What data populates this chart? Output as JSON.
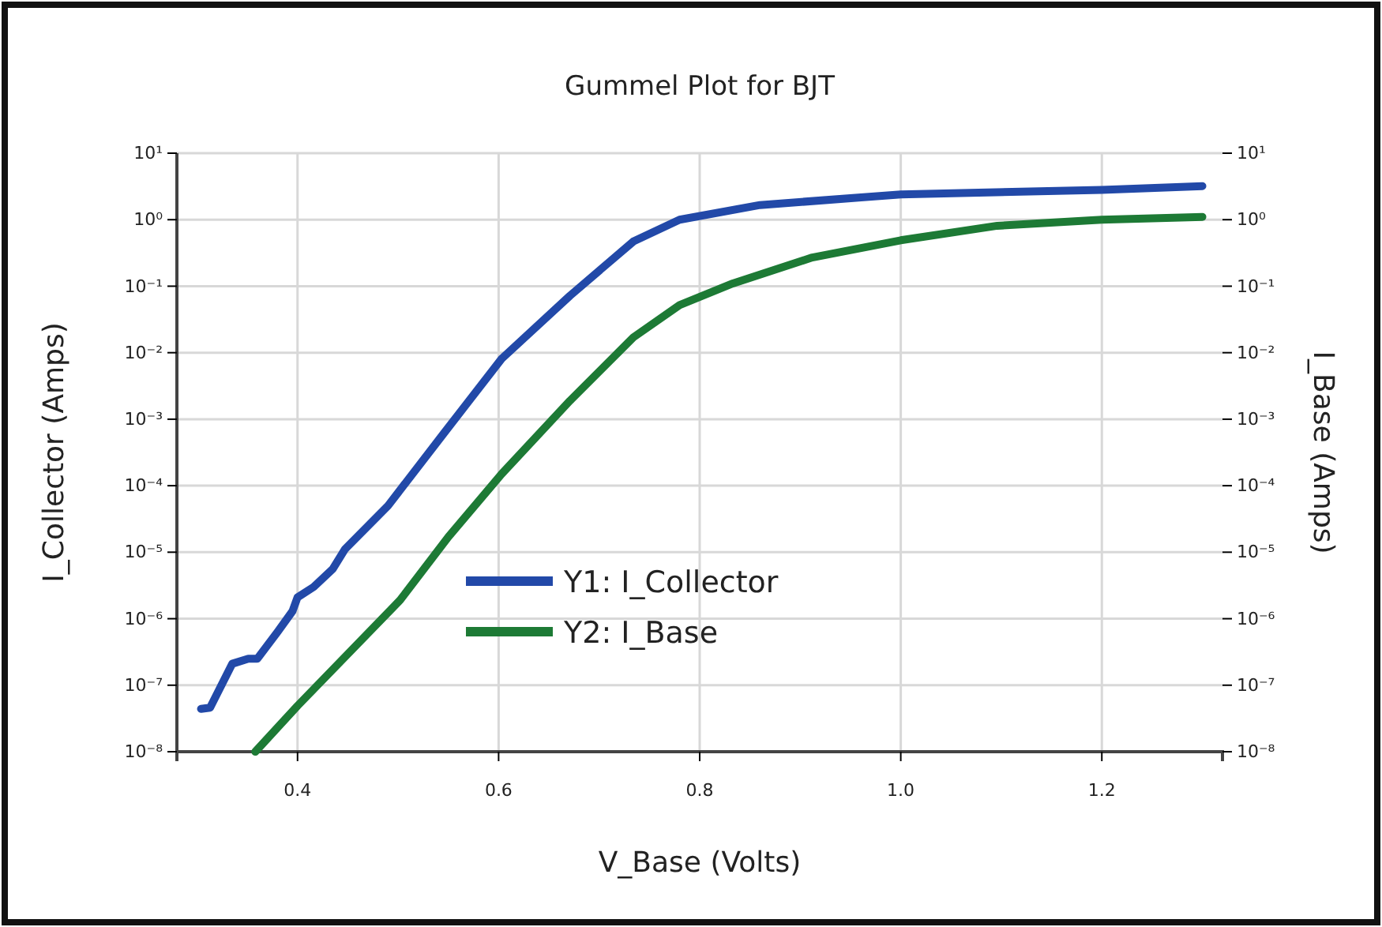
{
  "chart_data": {
    "type": "line",
    "title": "Gummel Plot for BJT",
    "xlabel": "V_Base (Volts)",
    "ylabel": "I_Collector (Amps)",
    "y2label": "I_Base (Amps)",
    "xlim": [
      0.28,
      1.32
    ],
    "xticks": [
      {
        "value": 0.4,
        "label": "0.4"
      },
      {
        "value": 0.6,
        "label": "0.6"
      },
      {
        "value": 0.8,
        "label": "0.8"
      },
      {
        "value": 1.0,
        "label": "1.0"
      },
      {
        "value": 1.2,
        "label": "1.2"
      }
    ],
    "ylim": [
      1e-08,
      10
    ],
    "yticks": [
      {
        "value": 1e-08,
        "label": "10⁻⁸"
      },
      {
        "value": 1e-07,
        "label": "10⁻⁷"
      },
      {
        "value": 1e-06,
        "label": "10⁻⁶"
      },
      {
        "value": 1e-05,
        "label": "10⁻⁵"
      },
      {
        "value": 0.0001,
        "label": "10⁻⁴"
      },
      {
        "value": 0.001,
        "label": "10⁻³"
      },
      {
        "value": 0.01,
        "label": "10⁻²"
      },
      {
        "value": 0.1,
        "label": "10⁻¹"
      },
      {
        "value": 1,
        "label": "10⁰"
      },
      {
        "value": 10,
        "label": "10¹"
      }
    ],
    "log": true,
    "grid": true,
    "legend": "center",
    "marker": "none",
    "line_style": "solid",
    "series": [
      {
        "name": "Y1: I_Collector",
        "color": "#2249a8",
        "x": [
          0.304,
          0.313,
          0.335,
          0.351,
          0.36,
          0.38,
          0.395,
          0.4,
          0.416,
          0.435,
          0.447,
          0.49,
          0.545,
          0.603,
          0.671,
          0.734,
          0.78,
          0.86,
          1.0,
          1.2,
          1.3
        ],
        "values": [
          4.4e-08,
          4.6e-08,
          2.1e-07,
          2.5e-07,
          2.5e-07,
          6.3e-07,
          1.3e-06,
          2.1e-06,
          3e-06,
          5.6e-06,
          1.1e-05,
          5e-05,
          0.0006,
          0.0081,
          0.072,
          0.47,
          1.0,
          1.66,
          2.4,
          2.8,
          3.2
        ]
      },
      {
        "name": "Y2: I_Base",
        "color": "#1d7a35",
        "x": [
          0.358,
          0.4,
          0.502,
          0.55,
          0.603,
          0.671,
          0.734,
          0.78,
          0.833,
          0.912,
          1.0,
          1.096,
          1.2,
          1.3
        ],
        "values": [
          1e-08,
          4.9e-08,
          1.9e-06,
          1.7e-05,
          0.00015,
          0.0019,
          0.017,
          0.052,
          0.11,
          0.27,
          0.49,
          0.81,
          1.0,
          1.1
        ]
      }
    ]
  }
}
